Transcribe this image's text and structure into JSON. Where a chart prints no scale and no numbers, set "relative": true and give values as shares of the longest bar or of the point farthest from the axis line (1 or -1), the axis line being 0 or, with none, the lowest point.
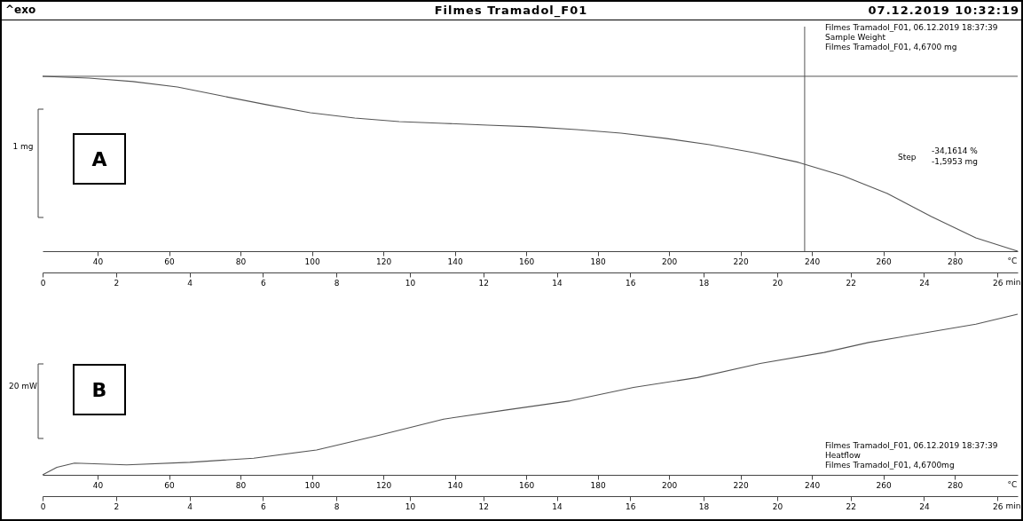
{
  "chart_data": [
    {
      "type": "line",
      "title": "Filmes Tramadol_F01",
      "relative": true,
      "xlabel": "min",
      "x2label": "°C",
      "xlim": [
        0,
        26.55
      ],
      "xticks": [
        0,
        2,
        4,
        6,
        8,
        10,
        12,
        14,
        16,
        18,
        20,
        22,
        24,
        26
      ],
      "x2lim": [
        24.6,
        297.6
      ],
      "x2ticks": [
        40,
        60,
        80,
        100,
        120,
        140,
        160,
        180,
        200,
        220,
        240,
        260,
        280
      ],
      "annotations": [
        "^exo",
        "07.12.2019 10:32:19",
        "Filmes Tramadol_F01, 06.12.2019 18:37:39",
        "Sample Weight",
        "Filmes Tramadol_F01, 4,6700 mg",
        "Step",
        "-34,1614 %",
        "-1,5953 mg",
        "1 mg",
        "A"
      ],
      "ref_lines": [
        {
          "axis": "y",
          "value": 1,
          "label": null,
          "color": "#555555"
        },
        {
          "axis": "x",
          "value": 20.75,
          "label": null,
          "color": "#555555"
        }
      ],
      "series": [
        {
          "color": "#555555",
          "x": [
            0,
            1.26,
            2.46,
            3.67,
            4.88,
            6.09,
            7.29,
            8.5,
            9.71,
            10.92,
            12.12,
            13.33,
            14.54,
            15.75,
            16.96,
            18.16,
            19.37,
            20.58,
            21.79,
            23.0,
            24.2,
            25.41,
            26.55
          ],
          "values": [
            1,
            0.99,
            0.97,
            0.939,
            0.888,
            0.838,
            0.792,
            0.761,
            0.741,
            0.731,
            0.721,
            0.711,
            0.695,
            0.675,
            0.645,
            0.609,
            0.563,
            0.508,
            0.431,
            0.33,
            0.198,
            0.076,
            0
          ]
        }
      ]
    },
    {
      "type": "line",
      "relative": true,
      "xlabel": "min",
      "x2label": "°C",
      "xlim": [
        0,
        26.55
      ],
      "xticks": [
        0,
        2,
        4,
        6,
        8,
        10,
        12,
        14,
        16,
        18,
        20,
        22,
        24,
        26
      ],
      "x2lim": [
        24.6,
        297.6
      ],
      "x2ticks": [
        40,
        60,
        80,
        100,
        120,
        140,
        160,
        180,
        200,
        220,
        240,
        260,
        280
      ],
      "annotations": [
        "Filmes Tramadol_F01, 06.12.2019 18:37:39",
        "Heatflow",
        "Filmes Tramadol_F01, 4,6700mg",
        "20 mW",
        "B"
      ],
      "series": [
        {
          "color": "#555555",
          "x": [
            0,
            0.39,
            0.87,
            2.29,
            4.01,
            5.75,
            7.46,
            9.2,
            10.92,
            12.63,
            14.37,
            16.09,
            17.83,
            19.54,
            21.28,
            22.49,
            24.2,
            25.41,
            26.55
          ],
          "values": [
            0,
            0.047,
            0.073,
            0.062,
            0.078,
            0.104,
            0.155,
            0.249,
            0.347,
            0.404,
            0.461,
            0.544,
            0.606,
            0.694,
            0.762,
            0.824,
            0.891,
            0.938,
            1
          ]
        }
      ]
    }
  ]
}
